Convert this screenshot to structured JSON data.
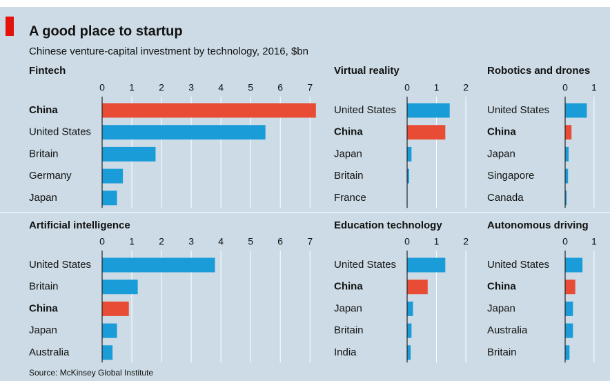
{
  "title": "A good place to startup",
  "subtitle": "Chinese venture-capital investment by technology, 2016, $bn",
  "source": "Source: McKinsey Global Institute",
  "chart_data": [
    {
      "type": "bar",
      "orientation": "horizontal",
      "title": "Fintech",
      "categories": [
        "China",
        "United States",
        "Britain",
        "Germany",
        "Japan"
      ],
      "values": [
        7.2,
        5.5,
        1.8,
        0.7,
        0.5
      ],
      "colors": [
        "#e84c35",
        "#1a9cd8",
        "#1a9cd8",
        "#1a9cd8",
        "#1a9cd8"
      ],
      "xlim": [
        0,
        7.25
      ],
      "xticks": [
        0,
        1,
        2,
        3,
        4,
        5,
        6,
        7
      ],
      "grid": true
    },
    {
      "type": "bar",
      "orientation": "horizontal",
      "title": "Virtual reality",
      "categories": [
        "United States",
        "China",
        "Japan",
        "Britain",
        "France"
      ],
      "values": [
        1.45,
        1.3,
        0.15,
        0.07,
        0
      ],
      "colors": [
        "#1a9cd8",
        "#e84c35",
        "#1a9cd8",
        "#1a9cd8",
        "#1a9cd8"
      ],
      "xlim": [
        0,
        2.35
      ],
      "xticks": [
        0,
        1,
        2
      ],
      "grid": true
    },
    {
      "type": "bar",
      "orientation": "horizontal",
      "title": "Robotics and drones",
      "categories": [
        "United States",
        "China",
        "Japan",
        "Singapore",
        "Canada"
      ],
      "values": [
        0.75,
        0.22,
        0.12,
        0.1,
        0.05
      ],
      "colors": [
        "#1a9cd8",
        "#e84c35",
        "#1a9cd8",
        "#1a9cd8",
        "#1a9cd8"
      ],
      "xlim": [
        0,
        1.36
      ],
      "xticks": [
        0,
        1
      ],
      "grid": true
    },
    {
      "type": "bar",
      "orientation": "horizontal",
      "title": "Artificial intelligence",
      "categories": [
        "United States",
        "Britain",
        "China",
        "Japan",
        "Australia"
      ],
      "values": [
        3.8,
        1.2,
        0.9,
        0.5,
        0.35
      ],
      "colors": [
        "#1a9cd8",
        "#1a9cd8",
        "#e84c35",
        "#1a9cd8",
        "#1a9cd8"
      ],
      "xlim": [
        0,
        7.25
      ],
      "xticks": [
        0,
        1,
        2,
        3,
        4,
        5,
        6,
        7
      ],
      "grid": true
    },
    {
      "type": "bar",
      "orientation": "horizontal",
      "title": "Education technology",
      "categories": [
        "United States",
        "China",
        "Japan",
        "Britain",
        "India"
      ],
      "values": [
        1.3,
        0.7,
        0.2,
        0.15,
        0.12
      ],
      "colors": [
        "#1a9cd8",
        "#e84c35",
        "#1a9cd8",
        "#1a9cd8",
        "#1a9cd8"
      ],
      "xlim": [
        0,
        2.35
      ],
      "xticks": [
        0,
        1,
        2
      ],
      "grid": true
    },
    {
      "type": "bar",
      "orientation": "horizontal",
      "title": "Autonomous driving",
      "categories": [
        "United States",
        "China",
        "Japan",
        "Australia",
        "Britain"
      ],
      "values": [
        0.6,
        0.35,
        0.27,
        0.27,
        0.15
      ],
      "colors": [
        "#1a9cd8",
        "#e84c35",
        "#1a9cd8",
        "#1a9cd8",
        "#1a9cd8"
      ],
      "xlim": [
        0,
        1.36
      ],
      "xticks": [
        0,
        1
      ],
      "grid": true
    }
  ]
}
